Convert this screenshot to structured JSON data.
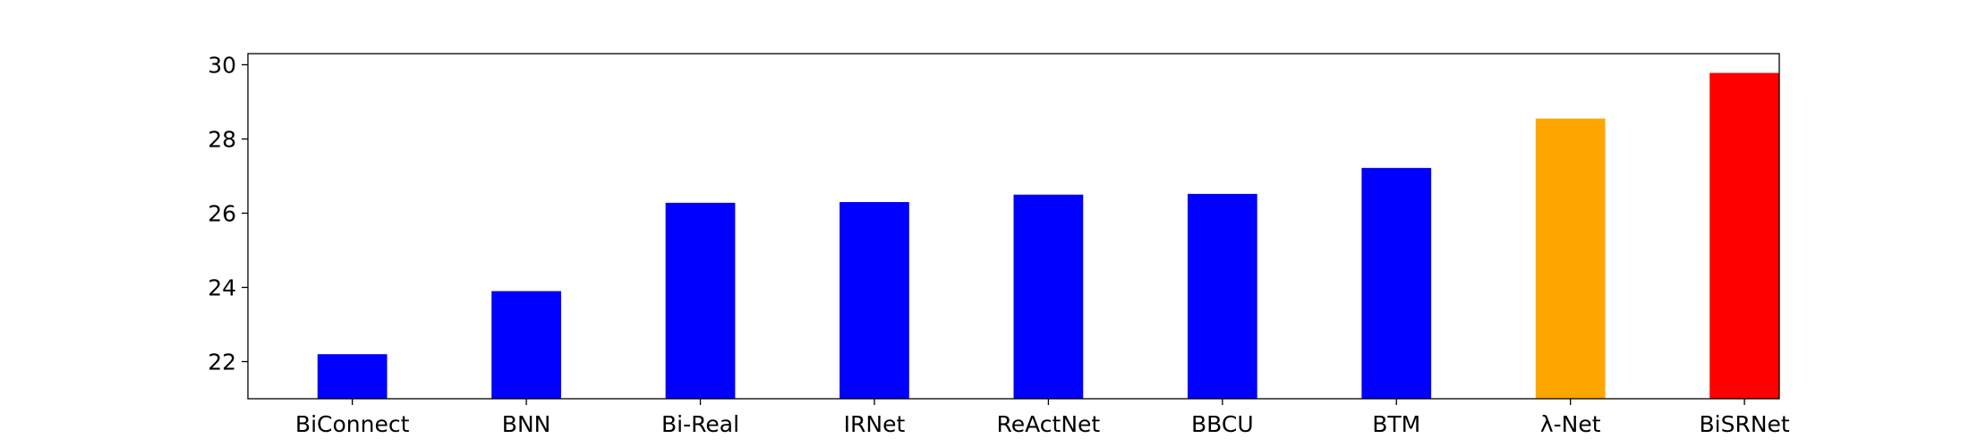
{
  "chart_data": {
    "type": "bar",
    "title": "",
    "xlabel": "",
    "ylabel": "",
    "categories": [
      "BiConnect",
      "BNN",
      "Bi-Real",
      "IRNet",
      "ReActNet",
      "BBCU",
      "BTM",
      "λ-Net",
      "BiSRNet"
    ],
    "values": [
      22.2,
      23.9,
      26.28,
      26.3,
      26.5,
      26.52,
      27.22,
      28.55,
      29.78
    ],
    "bar_colors": [
      "#0000ff",
      "#0000ff",
      "#0000ff",
      "#0000ff",
      "#0000ff",
      "#0000ff",
      "#0000ff",
      "#ffa500",
      "#ff0000"
    ],
    "ylim": [
      21.0,
      30.3
    ],
    "yticks": [
      22,
      24,
      26,
      28,
      30
    ],
    "grid": false,
    "legend": "none"
  }
}
